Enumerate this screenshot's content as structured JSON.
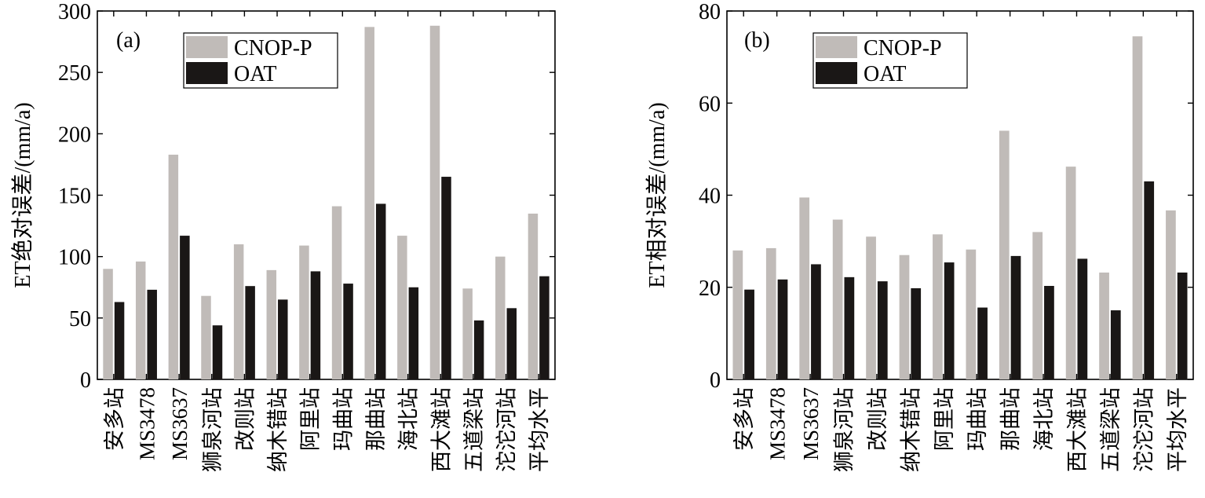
{
  "chart_data": [
    {
      "type": "bar",
      "panel_label": "(a)",
      "ylabel": "ET绝对误差/(mm/a)",
      "ylim": [
        0,
        300
      ],
      "yticks": [
        0,
        50,
        100,
        150,
        200,
        250,
        300
      ],
      "grid": false,
      "legend_position": "top-center",
      "categories": [
        "安多站",
        "MS3478",
        "MS3637",
        "狮泉河站",
        "改则站",
        "纳木错站",
        "阿里站",
        "玛曲站",
        "那曲站",
        "海北站",
        "西大滩站",
        "五道梁站",
        "沱沱河站",
        "平均水平"
      ],
      "series": [
        {
          "name": "CNOP-P",
          "color": "#c0bbb8",
          "values": [
            90,
            96,
            183,
            68,
            110,
            89,
            109,
            141,
            287,
            117,
            288,
            74,
            100,
            135
          ]
        },
        {
          "name": "OAT",
          "color": "#1a1716",
          "values": [
            63,
            73,
            117,
            44,
            76,
            65,
            88,
            78,
            143,
            75,
            165,
            48,
            58,
            84
          ]
        }
      ]
    },
    {
      "type": "bar",
      "panel_label": "(b)",
      "ylabel": "ET相对误差/(mm/a)",
      "ylim": [
        0,
        80
      ],
      "yticks": [
        0,
        20,
        40,
        60,
        80
      ],
      "grid": false,
      "legend_position": "top-center",
      "categories": [
        "安多站",
        "MS3478",
        "MS3637",
        "狮泉河站",
        "改则站",
        "纳木错站",
        "阿里站",
        "玛曲站",
        "那曲站",
        "海北站",
        "西大滩站",
        "五道梁站",
        "沱沱河站",
        "平均水平"
      ],
      "series": [
        {
          "name": "CNOP-P",
          "color": "#c0bbb8",
          "values": [
            28,
            28.5,
            39.5,
            34.7,
            31,
            27,
            31.5,
            28.2,
            54,
            32,
            46.2,
            23.2,
            74.5,
            36.7
          ]
        },
        {
          "name": "OAT",
          "color": "#1a1716",
          "values": [
            19.5,
            21.7,
            25,
            22.2,
            21.3,
            19.8,
            25.4,
            15.6,
            26.8,
            20.3,
            26.2,
            15,
            43,
            23.2
          ]
        }
      ]
    }
  ]
}
